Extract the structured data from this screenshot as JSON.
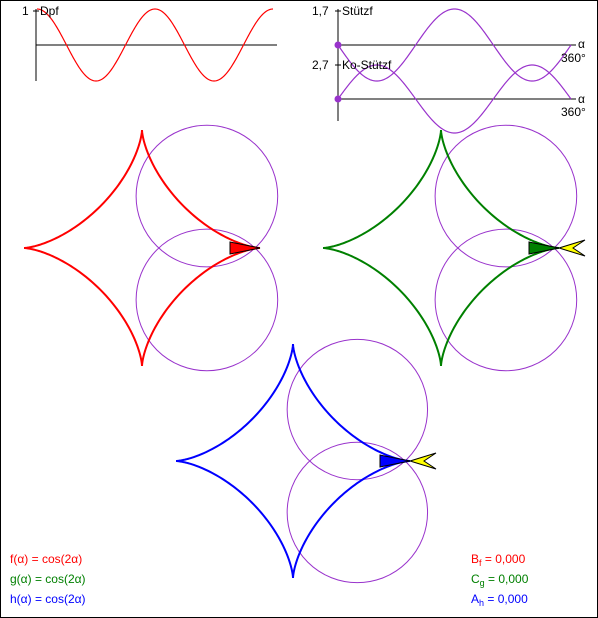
{
  "colors": {
    "f": "#ff0000",
    "g": "#008000",
    "h": "#0000ff",
    "circle": "#9933cc",
    "axis": "#000000",
    "arrowhead": "#ffff00"
  },
  "dpf_graph": {
    "y_tick": "1",
    "label": "Dpf",
    "function": "cos(2α)",
    "periods": 2
  },
  "stuetz_graph": {
    "value": "1,7",
    "label": "Stützf",
    "axis_symbol": "α",
    "axis_end": "360°"
  },
  "kostuetz_graph": {
    "value": "2,7",
    "label": "Ko-Stützf",
    "axis_symbol": "α",
    "axis_end": "360°"
  },
  "curves": [
    {
      "key": "f",
      "color_name": "red"
    },
    {
      "key": "g",
      "color_name": "green"
    },
    {
      "key": "h",
      "color_name": "blue"
    }
  ],
  "formulas": {
    "f": "f(α) = cos(2α)",
    "g": "g(α) = cos(2α)",
    "h": "h(α) = cos(2α)"
  },
  "areas": {
    "f": {
      "letter": "B",
      "sub": "f",
      "eq": " = 0,000"
    },
    "g": {
      "letter": "C",
      "sub": "g",
      "eq": " = 0,000"
    },
    "h": {
      "letter": "A",
      "sub": "h",
      "eq": " = 0,000"
    }
  }
}
